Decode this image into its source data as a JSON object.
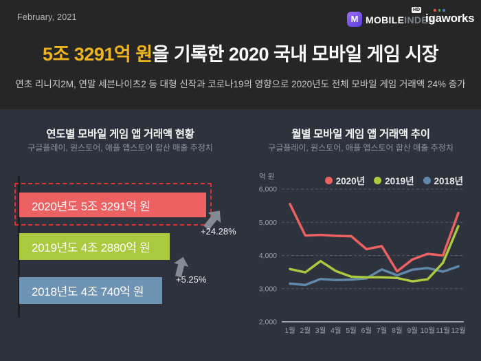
{
  "header": {
    "date": "February, 2021",
    "mobileindex": {
      "icon_letter": "M",
      "word_bold": "MOBILE",
      "word_light": "INDEX",
      "hd_badge": "HD"
    },
    "igaworks": {
      "wordmark": "igaworks",
      "dot_colors": [
        "#e05151",
        "#58a83e",
        "#4d7fd0"
      ]
    }
  },
  "hero": {
    "highlight": "5조 3291억 원",
    "highlight_color": "#f0b41e",
    "title_rest": "을 기록한 2020 국내 모바일 게임 시장",
    "subtitle": "연초 리니지2M, 연말 세븐나이츠2 등 대형 신작과 코로나19의 영향으로 2020년도 전체 모바일 게임 거래액 24% 증가"
  },
  "panels": {
    "yearly": {
      "title": "연도별 모바일 게임 앱 거래액 현황",
      "subtitle": "구글플레이, 원스토어, 애플 앱스토어 합산 매출 추정치",
      "bars": [
        {
          "label": "2020년도 5조 3291억 원",
          "value": 53291,
          "color": "#ec6161",
          "highlighted": true
        },
        {
          "label": "2019년도 4조 2880억 원",
          "value": 42880,
          "color": "#a9c93e",
          "highlighted": false
        },
        {
          "label": "2018년도 4조 740억 원",
          "value": 40740,
          "color": "#6e93b3",
          "highlighted": false
        }
      ],
      "growth": [
        {
          "label": "+24.28%"
        },
        {
          "label": "+5.25%"
        }
      ],
      "highlight_box_color": "#e23333"
    },
    "monthly": {
      "title": "월별 모바일 게임 앱 거래액 추이",
      "subtitle": "구글플레이, 원스토어, 애플 앱스토어 합산 매출 추정치"
    }
  },
  "chart_data": {
    "type": "line",
    "title": "월별 모바일 게임 앱 거래액 추이",
    "ylabel": "억 원",
    "x": [
      "1월",
      "2월",
      "3월",
      "4월",
      "5월",
      "6월",
      "7월",
      "8월",
      "9월",
      "10월",
      "11월",
      "12월"
    ],
    "ylim": [
      2000,
      6000
    ],
    "yticks": [
      2000,
      3000,
      4000,
      5000,
      6000
    ],
    "grid": "horizontal dashed, solid baseline at 2000",
    "legend_position": "top-right",
    "series": [
      {
        "name": "2020년",
        "color": "#ec6161",
        "values": [
          5550,
          4600,
          4620,
          4590,
          4580,
          4190,
          4280,
          3520,
          3880,
          4050,
          4000,
          5280
        ]
      },
      {
        "name": "2019년",
        "color": "#a9c93e",
        "values": [
          3590,
          3490,
          3830,
          3530,
          3360,
          3340,
          3340,
          3320,
          3220,
          3280,
          3780,
          4880
        ]
      },
      {
        "name": "2018년",
        "color": "#6187aa",
        "values": [
          3150,
          3110,
          3290,
          3260,
          3270,
          3310,
          3580,
          3400,
          3570,
          3620,
          3510,
          3670
        ]
      }
    ]
  }
}
